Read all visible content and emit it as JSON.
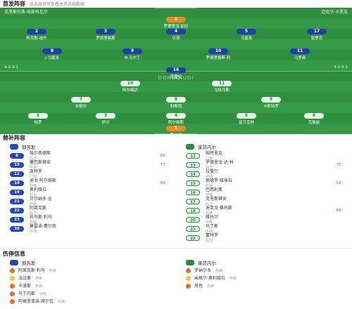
{
  "sections": {
    "lineup_title": "首发阵容",
    "lineup_sub": "点击球员可查看本场详细数据",
    "subs_title": "替补阵容",
    "injury_title": "伤停信息"
  },
  "pitch": {
    "home_team": "克里斯托弗·埃斯科瓦尔",
    "away_team": "迈克尔·卡里克",
    "home_formation": "4-2-3-1",
    "away_formation": "4-2-3-1",
    "center_label": "DONGQIUDI"
  },
  "home_lineup": [
    {
      "num": "1",
      "name": "罗德里戈·加拉",
      "gk": true
    },
    {
      "num": "2",
      "name": "阿克勒·迪尔"
    },
    {
      "num": "3",
      "name": "罗德里格斯"
    },
    {
      "num": "4",
      "name": "贝塔"
    },
    {
      "num": "5",
      "name": "马塞洛"
    },
    {
      "num": "17",
      "name": "恩里克"
    },
    {
      "num": "8",
      "name": "J·马塞洛"
    },
    {
      "num": "9",
      "name": "M·马尔丁"
    },
    {
      "num": "10",
      "name": "罗德里格斯·阿"
    },
    {
      "num": "11",
      "name": "马里奥"
    },
    {
      "num": "16",
      "name": "库雷拉"
    }
  ],
  "away_lineup": [
    {
      "num": "1",
      "name": "斯卡利",
      "gk": true
    },
    {
      "num": "2",
      "name": "帕罗"
    },
    {
      "num": "3",
      "name": "伊沃"
    },
    {
      "num": "4",
      "name": "阿尔维斯"
    },
    {
      "num": "5",
      "name": "富兰克林"
    },
    {
      "num": "6",
      "name": "克鲁兹"
    },
    {
      "num": "7",
      "name": "米歇尔"
    },
    {
      "num": "8",
      "name": "科斯塔"
    },
    {
      "num": "9",
      "name": "卡斯特罗"
    },
    {
      "num": "10",
      "name": "阿尔梅达"
    },
    {
      "num": "11",
      "name": "马特乌斯"
    }
  ],
  "subs": {
    "home_coach": "赫苏斯",
    "away_coach": "莱昂内尔",
    "home": [
      {
        "num": "6",
        "name": "埃尔南德斯",
        "meta": "后卫",
        "stat": "68'"
      },
      {
        "num": "15",
        "name": "塞巴斯蒂安",
        "meta": "中场",
        "stat": "77'"
      },
      {
        "num": "12",
        "name": "皮特罗",
        "meta": "门将",
        "stat": ""
      },
      {
        "num": "18",
        "name": "迪戈·阿尔维斯",
        "meta": "前锋",
        "stat": "84'"
      },
      {
        "num": "19",
        "name": "奥利维拉",
        "meta": "后卫",
        "stat": ""
      },
      {
        "num": "21",
        "name": "贝尔纳多·吉",
        "meta": "中场",
        "stat": ""
      },
      {
        "num": "22",
        "name": "阿莱克斯",
        "meta": "后卫",
        "stat": ""
      },
      {
        "num": "23",
        "name": "托马斯·利马",
        "meta": "前锋",
        "stat": ""
      },
      {
        "num": "30",
        "name": "莫雷诺·费尔南",
        "meta": "中场",
        "stat": ""
      }
    ],
    "away": [
      {
        "num": "12",
        "name": "帕特里克",
        "meta": "门将",
        "stat": ""
      },
      {
        "num": "13",
        "name": "罗德里戈·达·科",
        "meta": "后卫",
        "stat": "70'"
      },
      {
        "num": "14",
        "name": "拉斐尔",
        "meta": "中场",
        "stat": ""
      },
      {
        "num": "15",
        "name": "佩德罗·维埃拉",
        "meta": "中场",
        "stat": "62'"
      },
      {
        "num": "16",
        "name": "巴西利奥",
        "meta": "前锋",
        "stat": ""
      },
      {
        "num": "17",
        "name": "克里斯蒂安",
        "meta": "后卫",
        "stat": ""
      },
      {
        "num": "18",
        "name": "迪亚戈·桑托斯",
        "meta": "前锋",
        "stat": "88'"
      },
      {
        "num": "20",
        "name": "维托尔",
        "meta": "中场",
        "stat": ""
      },
      {
        "num": "21",
        "name": "马丁斯",
        "meta": "中场",
        "stat": ""
      },
      {
        "num": "22",
        "name": "蒙特罗",
        "meta": "后卫",
        "stat": ""
      }
    ]
  },
  "injuries": {
    "home_team": "赫苏斯",
    "away_team": "莱昂内尔",
    "home": [
      {
        "name": "阿莱克斯·利马",
        "meta": "伤病"
      },
      {
        "name": "法比奥",
        "meta": "停赛"
      },
      {
        "name": "卡洛斯",
        "meta": "伤病"
      },
      {
        "name": "马丁内斯",
        "meta": "待定"
      },
      {
        "name": "阿德里亚诺·席尔瓦",
        "meta": "伤病"
      }
    ],
    "away": [
      {
        "name": "罗纳尔多",
        "meta": "伤病"
      },
      {
        "name": "米格尔·奥利维拉",
        "meta": "停赛"
      },
      {
        "name": "恩佐",
        "meta": "伤病"
      }
    ]
  }
}
